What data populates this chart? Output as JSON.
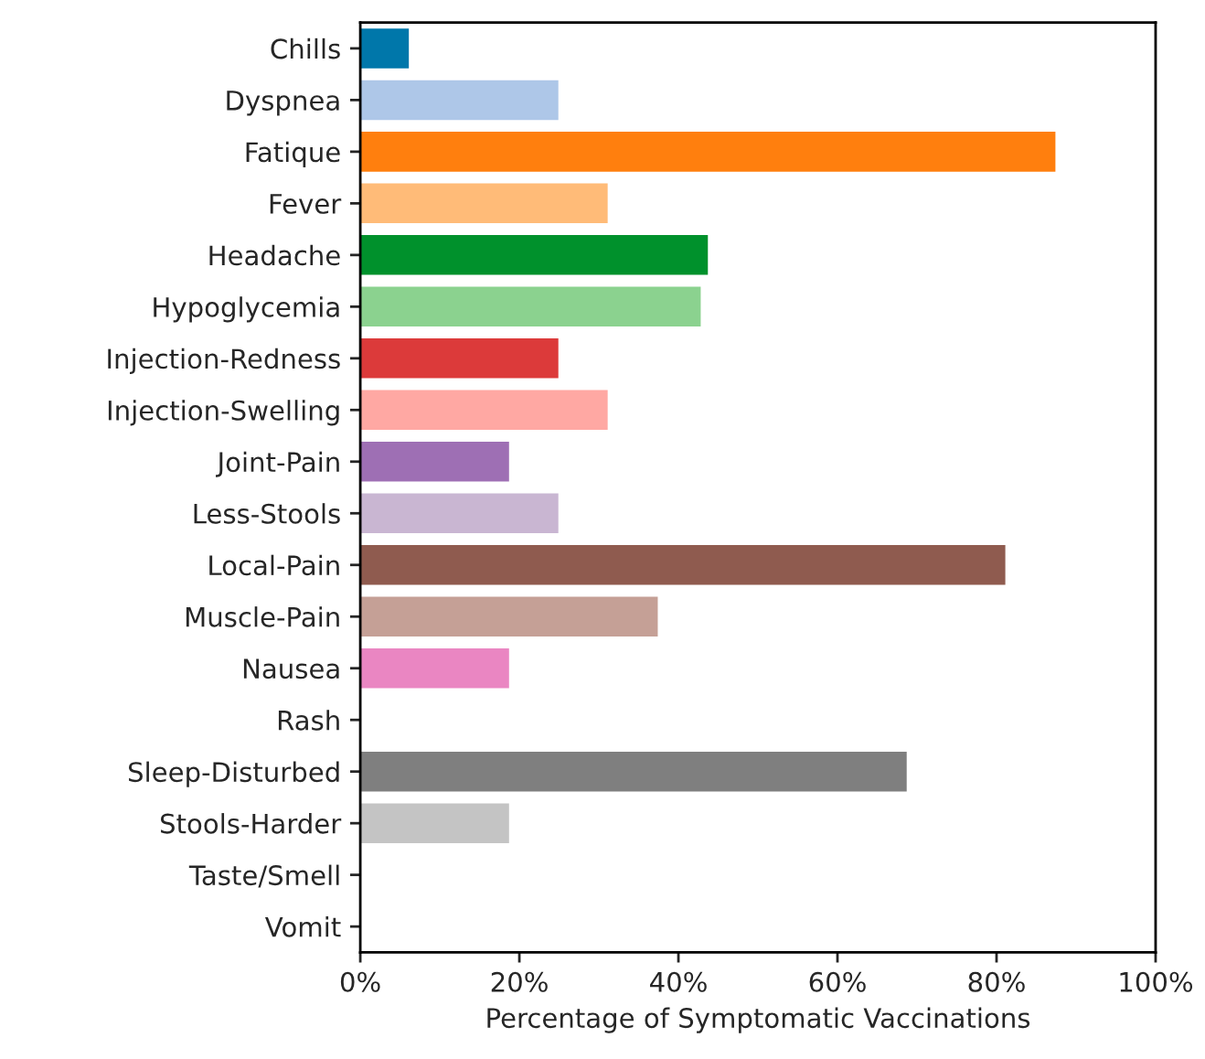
{
  "chart_data": {
    "type": "bar",
    "orientation": "horizontal",
    "xlabel": "Percentage of Symptomatic Vaccinations",
    "categories": [
      "Chills",
      "Dyspnea",
      "Fatique",
      "Fever",
      "Headache",
      "Hypoglycemia",
      "Injection-Redness",
      "Injection-Swelling",
      "Joint-Pain",
      "Less-Stools",
      "Local-Pain",
      "Muscle-Pain",
      "Nausea",
      "Rash",
      "Sleep-Disturbed",
      "Stools-Harder",
      "Taste/Smell",
      "Vomit"
    ],
    "values": [
      6.2,
      25,
      87.5,
      31.2,
      43.8,
      42.9,
      25,
      31.2,
      18.8,
      25,
      81.2,
      37.5,
      18.8,
      0,
      68.8,
      18.8,
      0,
      0
    ],
    "colors": [
      "#0077aa",
      "#aec7e8",
      "#ff7f0e",
      "#ffbb78",
      "#00912c",
      "#8bd28f",
      "#dc3a3a",
      "#ffa8a3",
      "#9e6fb4",
      "#c9b6d2",
      "#8f5b4f",
      "#c5a096",
      "#ea86c2",
      null,
      "#7f7f7f",
      "#c4c4c4",
      null,
      null
    ],
    "xlim": [
      0,
      100
    ],
    "xticks": [
      {
        "value": 0,
        "label": "0%"
      },
      {
        "value": 20,
        "label": "20%"
      },
      {
        "value": 40,
        "label": "40%"
      },
      {
        "value": 60,
        "label": "60%"
      },
      {
        "value": 80,
        "label": "80%"
      },
      {
        "value": 100,
        "label": "100%"
      }
    ],
    "grid": false
  }
}
